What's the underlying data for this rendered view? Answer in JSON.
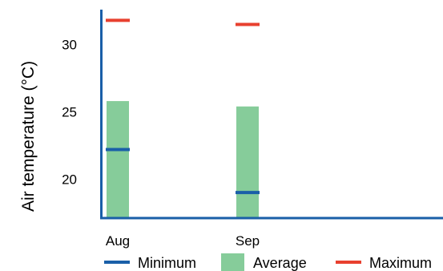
{
  "chart_data": {
    "type": "bar",
    "ylabel": "Air temperature (°C)",
    "xlabel": "",
    "categories": [
      "Aug",
      "Sep"
    ],
    "ylim": [
      17.1,
      32.6
    ],
    "yticks": [
      20,
      25,
      30
    ],
    "series": [
      {
        "name": "Minimum",
        "values": [
          22.2,
          19.0
        ],
        "color": "#1a5fa8"
      },
      {
        "name": "Average",
        "values": [
          [
            17.1,
            25.8
          ],
          [
            17.1,
            25.4
          ]
        ],
        "color": "#86cc9a"
      },
      {
        "name": "Maximum",
        "values": [
          31.8,
          31.5
        ],
        "color": "#e8402f"
      }
    ],
    "axis_color": "#1a5fa8",
    "grid": false,
    "legend_position": "bottom"
  }
}
